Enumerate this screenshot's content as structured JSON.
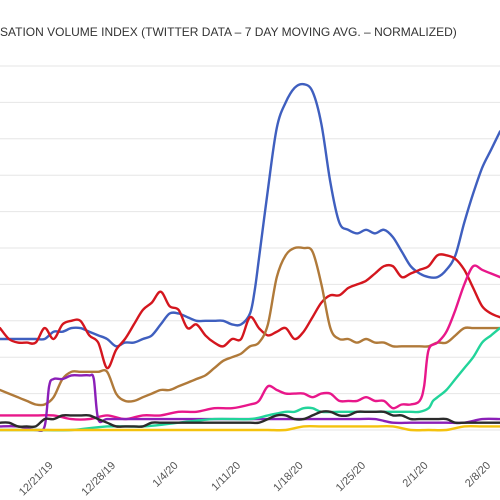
{
  "chart_data": {
    "type": "line",
    "title": "SATION VOLUME INDEX (TWITTER DATA – 7 DAY MOVING AVG. – NORMALIZED)",
    "xlabel": "",
    "ylabel": "",
    "x_ticks": [
      {
        "label": "12/21/19",
        "x": 6
      },
      {
        "label": "12/28/19",
        "x": 13
      },
      {
        "label": "1/4/20",
        "x": 20
      },
      {
        "label": "1/11/20",
        "x": 27
      },
      {
        "label": "1/18/20",
        "x": 34
      },
      {
        "label": "1/25/20",
        "x": 41
      },
      {
        "label": "2/1/20",
        "x": 48
      },
      {
        "label": "2/8/20",
        "x": 55
      }
    ],
    "xlim": [
      0,
      56
    ],
    "ylim": [
      0,
      100
    ],
    "y_gridlines": [
      0,
      10,
      20,
      30,
      40,
      50,
      60,
      70,
      80,
      90,
      100
    ],
    "grid": true,
    "legend": "none",
    "series": [
      {
        "color": "#3f5fbf",
        "x": [
          0,
          2,
          4,
          5,
          6,
          7,
          8,
          9,
          10,
          11,
          12,
          13,
          14,
          15,
          16,
          17,
          18,
          19,
          20,
          21,
          22,
          23,
          24,
          25,
          26,
          27,
          28,
          28.5,
          29,
          30,
          31,
          32,
          33,
          34,
          35,
          36,
          37,
          38,
          39,
          40,
          41,
          42,
          43,
          44,
          45,
          46,
          47,
          48,
          49,
          50,
          51,
          52,
          53,
          54,
          55,
          56
        ],
        "y": [
          25,
          25,
          25,
          25,
          27,
          27,
          28,
          28,
          27,
          26,
          25,
          23,
          24,
          24,
          25,
          26,
          29,
          32,
          32,
          31,
          30,
          30,
          30,
          30,
          29,
          29,
          32,
          38,
          47,
          66,
          83,
          90,
          94,
          95,
          93,
          84,
          68,
          57,
          55,
          54,
          55,
          54,
          55,
          53,
          49,
          45,
          43,
          42,
          42,
          44,
          48,
          57,
          65,
          72,
          77,
          82
        ]
      },
      {
        "color": "#d4161e",
        "x": [
          0,
          1,
          2,
          3,
          4,
          5,
          6,
          7,
          8,
          9,
          10,
          11,
          12,
          13,
          14,
          15,
          16,
          17,
          18,
          19,
          20,
          21,
          22,
          23,
          24,
          25,
          26,
          27,
          28,
          29,
          30,
          31,
          32,
          33,
          34,
          35,
          36,
          37,
          38,
          39,
          40,
          41,
          42,
          43,
          44,
          45,
          46,
          47,
          48,
          49,
          50,
          51,
          52,
          53,
          54,
          55,
          56
        ],
        "y": [
          28,
          25,
          24,
          24,
          24,
          28,
          25,
          29,
          30,
          30,
          26,
          24,
          17,
          22,
          25,
          29,
          33,
          35,
          38,
          34,
          33,
          28,
          29,
          26,
          24,
          23,
          25,
          25,
          31,
          28,
          26,
          27,
          28,
          25,
          27,
          31,
          35,
          37,
          37,
          39,
          40,
          41,
          43,
          45,
          45,
          42,
          43,
          44,
          45,
          48,
          48,
          47,
          44,
          39,
          34,
          32,
          31
        ]
      },
      {
        "color": "#b07a3a",
        "x": [
          0,
          1,
          2,
          3,
          4,
          5,
          6,
          7,
          8,
          9,
          10,
          11,
          12,
          13,
          14,
          15,
          16,
          17,
          18,
          19,
          20,
          21,
          22,
          23,
          24,
          25,
          26,
          27,
          28,
          29,
          30,
          31,
          32,
          33,
          34,
          35,
          36,
          37,
          38,
          39,
          40,
          41,
          42,
          43,
          44,
          45,
          46,
          47,
          48,
          49,
          50,
          51,
          52,
          53,
          54,
          55,
          56
        ],
        "y": [
          11,
          10,
          9,
          8,
          7,
          7,
          9,
          14,
          16,
          16,
          16,
          16,
          16,
          10,
          8,
          8,
          9,
          10,
          11,
          11,
          12,
          13,
          14,
          15,
          17,
          19,
          20,
          21,
          23,
          24,
          29,
          42,
          48,
          50,
          50,
          49,
          40,
          28,
          25,
          25,
          24,
          25,
          24,
          24,
          23,
          23,
          23,
          23,
          23,
          24,
          24,
          26,
          28,
          28,
          28,
          28,
          28
        ]
      },
      {
        "color": "#e8178a",
        "x": [
          0,
          2,
          4,
          6,
          8,
          10,
          12,
          14,
          16,
          18,
          20,
          22,
          24,
          26,
          28,
          29,
          30,
          31,
          32,
          33,
          34,
          35,
          36,
          37,
          38,
          39,
          40,
          41,
          42,
          43,
          44,
          45,
          46,
          47,
          47.5,
          48,
          49,
          50,
          51,
          52,
          53,
          54,
          55,
          56
        ],
        "y": [
          4,
          4,
          4,
          4,
          3,
          3,
          4,
          3,
          4,
          4,
          5,
          5,
          6,
          6,
          7,
          8,
          12,
          11,
          10,
          10,
          10,
          9,
          10,
          10,
          8,
          8,
          8,
          9,
          8,
          8,
          6,
          7,
          7,
          8,
          12,
          22,
          24,
          27,
          33,
          40,
          45,
          44,
          43,
          42
        ]
      },
      {
        "color": "#8b1fb8",
        "x": [
          0,
          2,
          4,
          5,
          5.5,
          6,
          7,
          8,
          9,
          10,
          10.5,
          11,
          12,
          14,
          16,
          18,
          20,
          22,
          24,
          26,
          28,
          30,
          32,
          34,
          36,
          38,
          40,
          42,
          44,
          46,
          48,
          50,
          52,
          54,
          56
        ],
        "y": [
          1,
          1,
          0,
          1,
          12,
          14,
          14,
          15,
          15,
          15,
          14,
          3,
          3,
          3,
          3,
          3,
          3,
          3,
          3,
          3,
          3,
          3,
          3,
          3,
          3,
          3,
          3,
          3,
          2,
          2,
          2,
          2,
          2,
          3,
          3
        ]
      },
      {
        "color": "#22d49a",
        "x": [
          0,
          4,
          8,
          12,
          16,
          20,
          24,
          28,
          30,
          32,
          33,
          34,
          35,
          36,
          38,
          40,
          42,
          44,
          45,
          46,
          47,
          48,
          48.5,
          49,
          50,
          51,
          52,
          53,
          54,
          55,
          56
        ],
        "y": [
          0,
          0,
          0,
          1,
          1,
          2,
          3,
          3,
          4,
          5,
          5,
          6,
          6,
          5,
          5,
          5,
          5,
          5,
          5,
          5,
          5,
          6,
          8,
          9,
          11,
          14,
          17,
          20,
          24,
          26,
          28
        ]
      },
      {
        "color": "#2b2b2b",
        "x": [
          0,
          1,
          2,
          3,
          4,
          5,
          6,
          7,
          8,
          9,
          10,
          11,
          12,
          13,
          14,
          15,
          16,
          17,
          18,
          19,
          20,
          21,
          22,
          23,
          24,
          25,
          26,
          27,
          28,
          29,
          30,
          31,
          32,
          33,
          34,
          35,
          36,
          37,
          38,
          39,
          40,
          41,
          42,
          43,
          44,
          45,
          46,
          47,
          48,
          49,
          50,
          51,
          52,
          53,
          54,
          55,
          56
        ],
        "y": [
          2,
          2,
          1,
          1,
          1,
          3,
          3,
          4,
          4,
          4,
          4,
          3,
          2,
          1,
          1,
          1,
          1,
          2,
          2,
          2,
          2,
          2,
          2,
          2,
          2,
          2,
          2,
          2,
          2,
          2,
          3,
          4,
          4,
          3,
          3,
          4,
          5,
          5,
          4,
          4,
          5,
          5,
          5,
          5,
          4,
          4,
          3,
          3,
          3,
          3,
          3,
          2,
          2,
          2,
          2,
          2,
          2
        ]
      },
      {
        "color": "#f4c20d",
        "x": [
          0,
          4,
          8,
          12,
          16,
          20,
          24,
          28,
          30,
          32,
          34,
          36,
          38,
          40,
          42,
          44,
          46,
          48,
          50,
          52,
          54,
          56
        ],
        "y": [
          0,
          0,
          0,
          0,
          0,
          0,
          0,
          0,
          0,
          0,
          1,
          1,
          1,
          1,
          1,
          1,
          0,
          0,
          0,
          1,
          1,
          1
        ]
      }
    ]
  }
}
